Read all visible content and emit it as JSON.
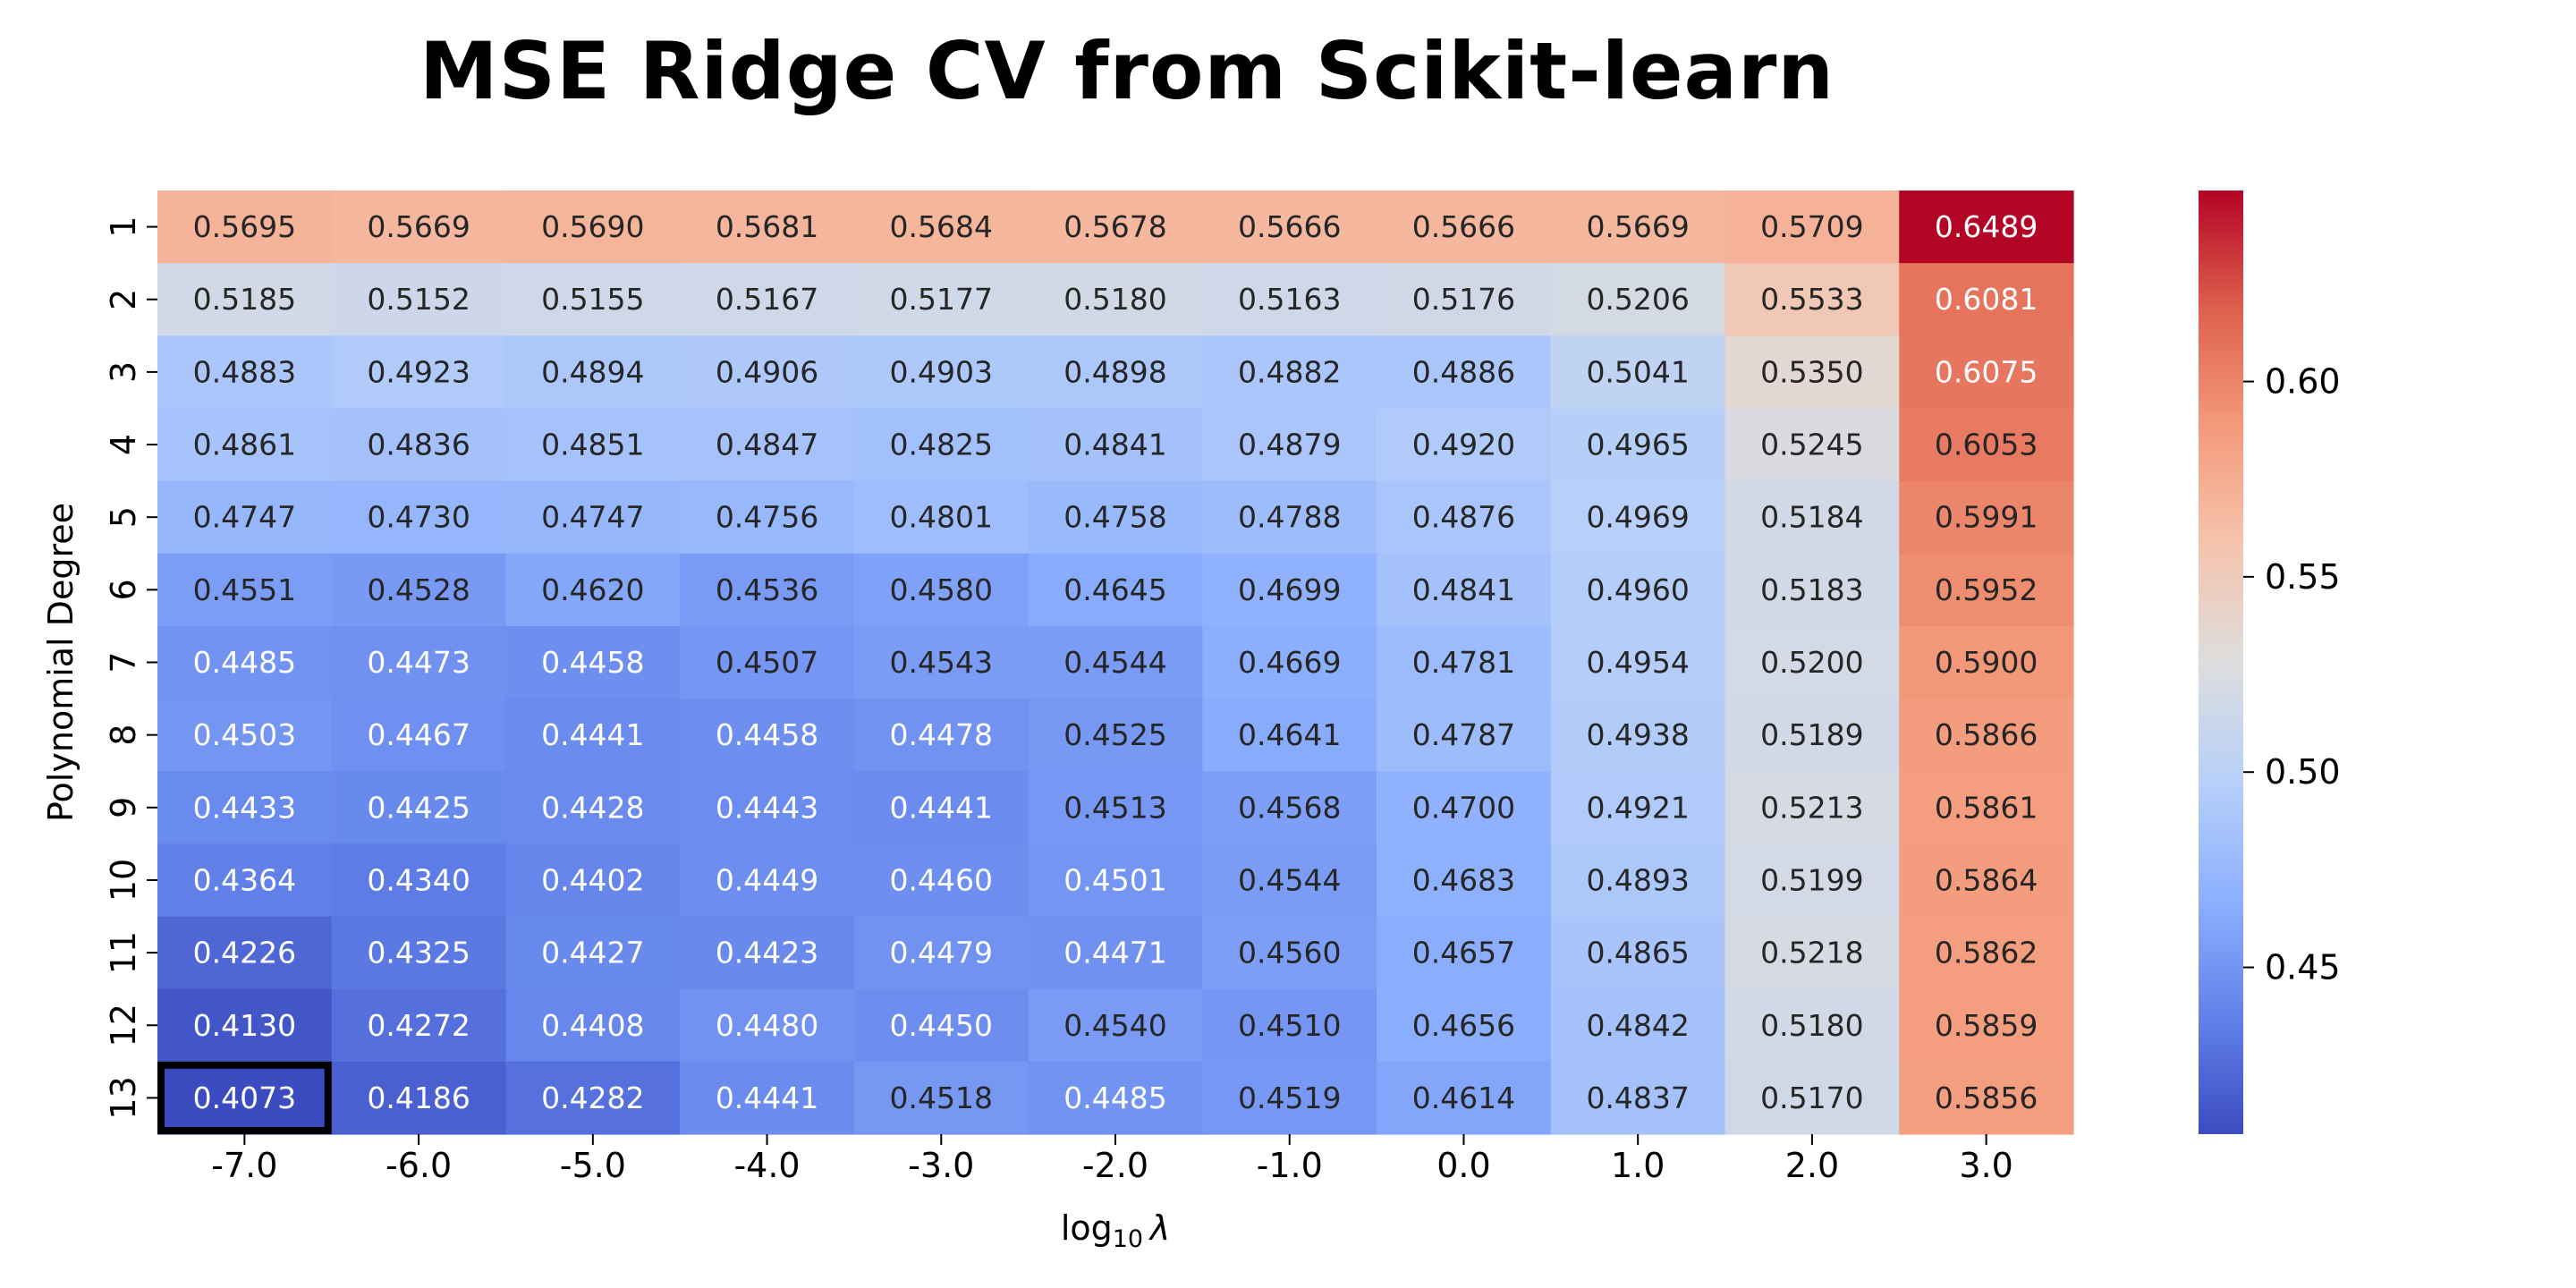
{
  "chart_data": {
    "type": "heatmap",
    "title": "MSE Ridge CV from Scikit-learn",
    "xlabel": "log₁₀ λ",
    "xlabel_main": "log",
    "xlabel_sub": "10",
    "xlabel_symbol": "λ",
    "ylabel": "Polynomial Degree",
    "x_categories": [
      "-7.0",
      "-6.0",
      "-5.0",
      "-4.0",
      "-3.0",
      "-2.0",
      "-1.0",
      "0.0",
      "1.0",
      "2.0",
      "3.0"
    ],
    "y_categories": [
      "1",
      "2",
      "3",
      "4",
      "5",
      "6",
      "7",
      "8",
      "9",
      "10",
      "11",
      "12",
      "13"
    ],
    "values": [
      [
        0.5695,
        0.5669,
        0.569,
        0.5681,
        0.5684,
        0.5678,
        0.5666,
        0.5666,
        0.5669,
        0.5709,
        0.6489
      ],
      [
        0.5185,
        0.5152,
        0.5155,
        0.5167,
        0.5177,
        0.518,
        0.5163,
        0.5176,
        0.5206,
        0.5533,
        0.6081
      ],
      [
        0.4883,
        0.4923,
        0.4894,
        0.4906,
        0.4903,
        0.4898,
        0.4882,
        0.4886,
        0.5041,
        0.535,
        0.6075
      ],
      [
        0.4861,
        0.4836,
        0.4851,
        0.4847,
        0.4825,
        0.4841,
        0.4879,
        0.492,
        0.4965,
        0.5245,
        0.6053
      ],
      [
        0.4747,
        0.473,
        0.4747,
        0.4756,
        0.4801,
        0.4758,
        0.4788,
        0.4876,
        0.4969,
        0.5184,
        0.5991
      ],
      [
        0.4551,
        0.4528,
        0.462,
        0.4536,
        0.458,
        0.4645,
        0.4699,
        0.4841,
        0.496,
        0.5183,
        0.5952
      ],
      [
        0.4485,
        0.4473,
        0.4458,
        0.4507,
        0.4543,
        0.4544,
        0.4669,
        0.4781,
        0.4954,
        0.52,
        0.59
      ],
      [
        0.4503,
        0.4467,
        0.4441,
        0.4458,
        0.4478,
        0.4525,
        0.4641,
        0.4787,
        0.4938,
        0.5189,
        0.5866
      ],
      [
        0.4433,
        0.4425,
        0.4428,
        0.4443,
        0.4441,
        0.4513,
        0.4568,
        0.47,
        0.4921,
        0.5213,
        0.5861
      ],
      [
        0.4364,
        0.434,
        0.4402,
        0.4449,
        0.446,
        0.4501,
        0.4544,
        0.4683,
        0.4893,
        0.5199,
        0.5864
      ],
      [
        0.4226,
        0.4325,
        0.4427,
        0.4423,
        0.4479,
        0.4471,
        0.456,
        0.4657,
        0.4865,
        0.5218,
        0.5862
      ],
      [
        0.413,
        0.4272,
        0.4408,
        0.448,
        0.445,
        0.454,
        0.451,
        0.4656,
        0.4842,
        0.518,
        0.5859
      ],
      [
        0.4073,
        0.4186,
        0.4282,
        0.4441,
        0.4518,
        0.4485,
        0.4519,
        0.4614,
        0.4837,
        0.517,
        0.5856
      ]
    ],
    "colormap": "coolwarm",
    "vmin": 0.4073,
    "vmax": 0.6489,
    "colorbar_ticks": [
      "0.45",
      "0.50",
      "0.55",
      "0.60"
    ],
    "highlight_cell": {
      "row": 12,
      "col": 0
    },
    "grid": false
  }
}
